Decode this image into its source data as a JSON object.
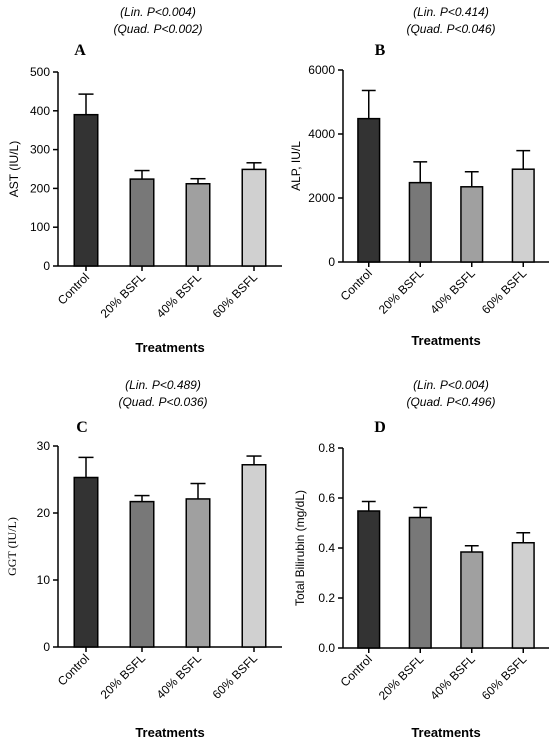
{
  "chart_data": [
    {
      "type": "bar",
      "panel": "A",
      "stats": [
        "(Lin. P<0.004)",
        "(Quad. P<0.002)"
      ],
      "categories": [
        "Control",
        "20% BSFL",
        "40% BSFL",
        "60% BSFL"
      ],
      "values": [
        390,
        224,
        212,
        249
      ],
      "errors": [
        53,
        22,
        13,
        17
      ],
      "ylabel": "AST (IU/L)",
      "xlabel": "Treatments",
      "ylim": [
        0,
        500
      ],
      "yticks": [
        0,
        100,
        200,
        300,
        400,
        500
      ],
      "ytick_labels": [
        "0",
        "100",
        "200",
        "300",
        "400",
        "500"
      ],
      "colors": [
        "#333333",
        "#787878",
        "#a0a0a0",
        "#d0d0d0"
      ]
    },
    {
      "type": "bar",
      "panel": "B",
      "stats": [
        "(Lin. P<0.414)",
        "(Quad. P<0.046)"
      ],
      "categories": [
        "Control",
        "20% BSFL",
        "40% BSFL",
        "60% BSFL"
      ],
      "values": [
        4480,
        2480,
        2350,
        2900
      ],
      "errors": [
        880,
        650,
        470,
        580
      ],
      "ylabel": "ALP, IU/L",
      "xlabel": "Treatments",
      "ylim": [
        0,
        6000
      ],
      "yticks": [
        0,
        2000,
        4000,
        6000
      ],
      "ytick_labels": [
        "0",
        "2000",
        "4000",
        "6000"
      ],
      "colors": [
        "#333333",
        "#787878",
        "#a0a0a0",
        "#d0d0d0"
      ]
    },
    {
      "type": "bar",
      "panel": "C",
      "stats": [
        "(Lin. P<0.489)",
        "(Quad. P<0.036)"
      ],
      "categories": [
        "Control",
        "20% BSFL",
        "40% BSFL",
        "60% BSFL"
      ],
      "values": [
        25.3,
        21.7,
        22.1,
        27.2
      ],
      "errors": [
        3.0,
        0.9,
        2.3,
        1.3
      ],
      "ylabel": "GGT (IU/L)",
      "xlabel": "Treatments",
      "ylim": [
        0,
        30
      ],
      "yticks": [
        0,
        10,
        20,
        30
      ],
      "ytick_labels": [
        "0",
        "10",
        "20",
        "30"
      ],
      "colors": [
        "#333333",
        "#787878",
        "#a0a0a0",
        "#d0d0d0"
      ]
    },
    {
      "type": "bar",
      "panel": "D",
      "stats": [
        "(Lin. P<0.004)",
        "(Quad. P<0.496)"
      ],
      "categories": [
        "Control",
        "20% BSFL",
        "40% BSFL",
        "60% BSFL"
      ],
      "values": [
        0.548,
        0.522,
        0.384,
        0.421
      ],
      "errors": [
        0.038,
        0.04,
        0.025,
        0.04
      ],
      "ylabel": "Total Bilirubin  (mg/dL)",
      "xlabel": "Treatments",
      "ylim": [
        0,
        0.8
      ],
      "yticks": [
        0,
        0.2,
        0.4,
        0.6,
        0.8
      ],
      "ytick_labels": [
        "0.0",
        "0.2",
        "0.4",
        "0.6",
        "0.8"
      ],
      "colors": [
        "#333333",
        "#787878",
        "#a0a0a0",
        "#d0d0d0"
      ]
    }
  ]
}
